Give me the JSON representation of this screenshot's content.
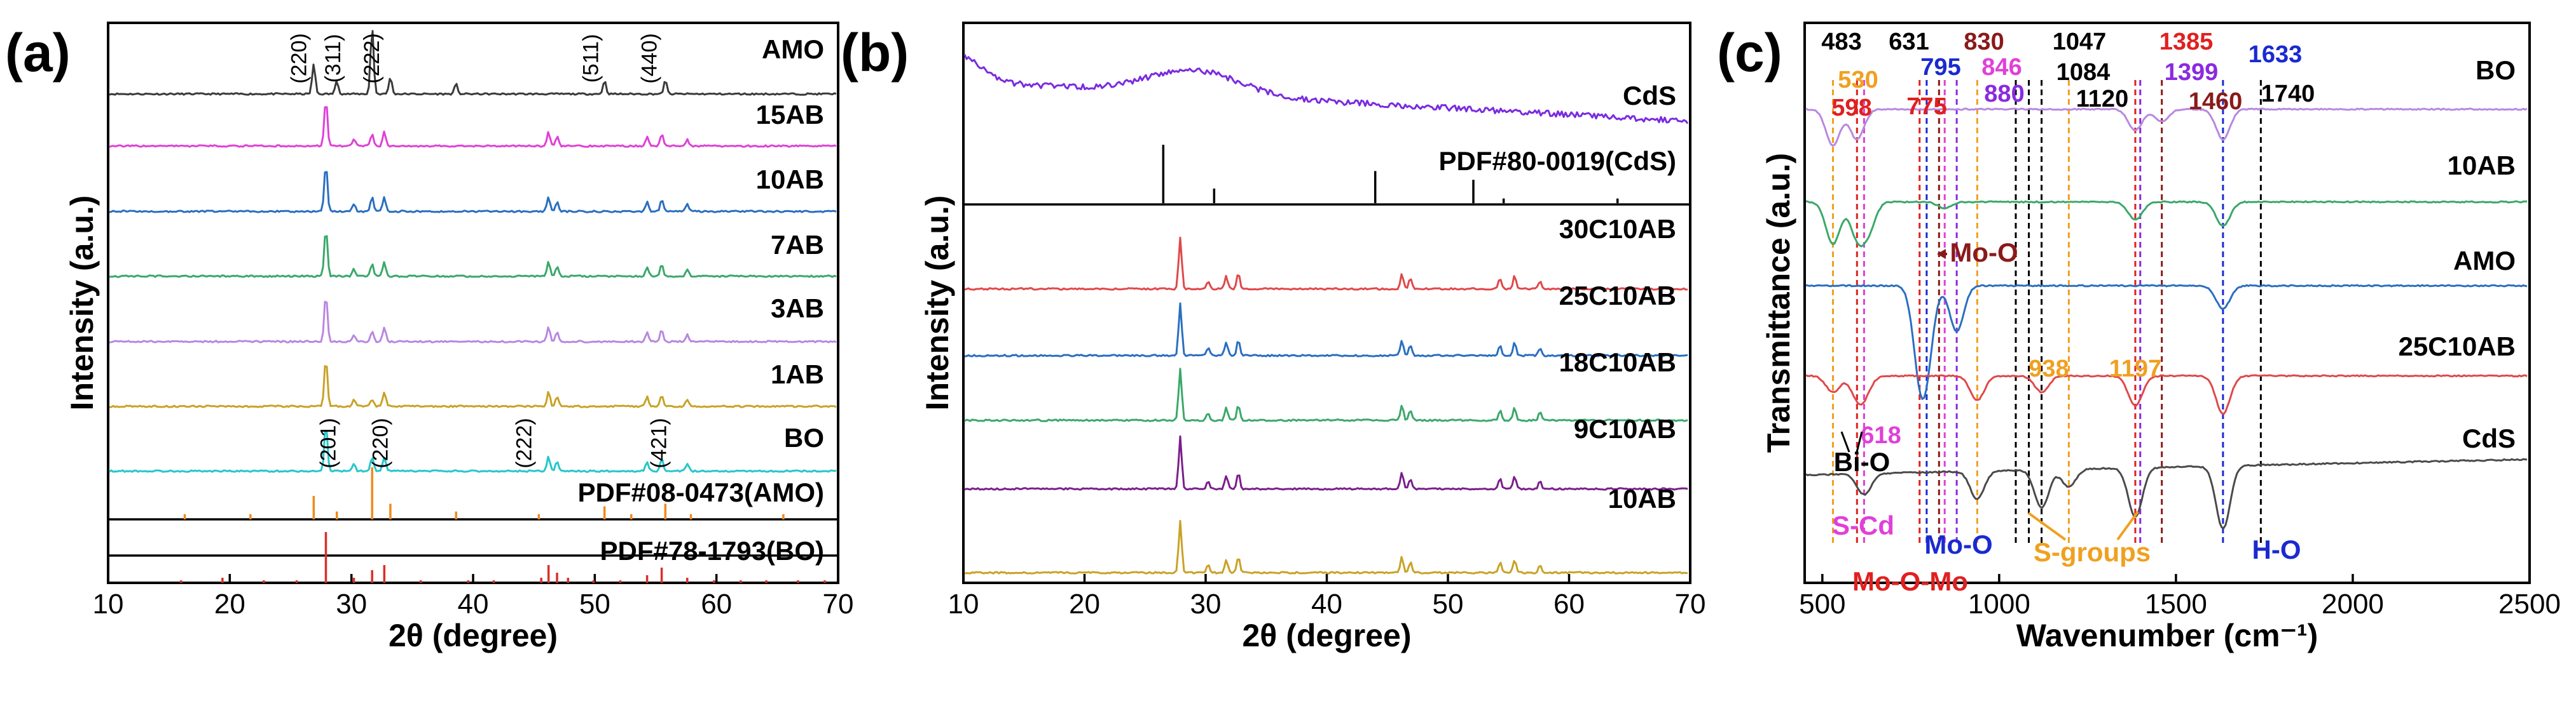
{
  "chart_data": [
    {
      "panel": "(a)",
      "type": "line",
      "xlabel": "2θ (degree)",
      "ylabel": "Intensity (a.u.)",
      "xlim": [
        10,
        70
      ],
      "xticks": [
        10,
        20,
        30,
        40,
        50,
        60,
        70
      ],
      "series": [
        {
          "name": "AMO",
          "color": "#3a3a3a",
          "peaks": [
            [
              26.9,
              0.45
            ],
            [
              28.8,
              0.2
            ],
            [
              31.7,
              1.0
            ],
            [
              33.2,
              0.25
            ],
            [
              38.6,
              0.15
            ],
            [
              50.8,
              0.2
            ],
            [
              55.8,
              0.2
            ]
          ]
        },
        {
          "name": "15AB",
          "color": "#e040d8",
          "peaks": [
            [
              27.9,
              1.0
            ],
            [
              30.2,
              0.15
            ],
            [
              31.7,
              0.25
            ],
            [
              32.7,
              0.3
            ],
            [
              46.2,
              0.3
            ],
            [
              46.9,
              0.2
            ],
            [
              54.3,
              0.2
            ],
            [
              55.5,
              0.25
            ],
            [
              57.6,
              0.15
            ]
          ]
        },
        {
          "name": "10AB",
          "color": "#2a6fc0",
          "peaks": [
            [
              27.9,
              1.0
            ],
            [
              30.2,
              0.15
            ],
            [
              31.7,
              0.3
            ],
            [
              32.7,
              0.3
            ],
            [
              46.2,
              0.3
            ],
            [
              46.9,
              0.2
            ],
            [
              54.3,
              0.2
            ],
            [
              55.5,
              0.25
            ],
            [
              57.6,
              0.15
            ]
          ]
        },
        {
          "name": "7AB",
          "color": "#3aa86a",
          "peaks": [
            [
              27.9,
              1.0
            ],
            [
              30.2,
              0.15
            ],
            [
              31.7,
              0.25
            ],
            [
              32.7,
              0.3
            ],
            [
              46.2,
              0.3
            ],
            [
              46.9,
              0.2
            ],
            [
              54.3,
              0.2
            ],
            [
              55.5,
              0.25
            ],
            [
              57.6,
              0.15
            ]
          ]
        },
        {
          "name": "3AB",
          "color": "#b888e0",
          "peaks": [
            [
              27.9,
              1.0
            ],
            [
              30.2,
              0.15
            ],
            [
              31.7,
              0.2
            ],
            [
              32.7,
              0.3
            ],
            [
              46.2,
              0.3
            ],
            [
              46.9,
              0.2
            ],
            [
              54.3,
              0.2
            ],
            [
              55.5,
              0.25
            ],
            [
              57.6,
              0.15
            ]
          ]
        },
        {
          "name": "1AB",
          "color": "#c9a227",
          "peaks": [
            [
              27.9,
              1.0
            ],
            [
              30.2,
              0.15
            ],
            [
              31.7,
              0.15
            ],
            [
              32.7,
              0.3
            ],
            [
              46.2,
              0.3
            ],
            [
              46.9,
              0.2
            ],
            [
              54.3,
              0.2
            ],
            [
              55.5,
              0.25
            ],
            [
              57.6,
              0.15
            ]
          ]
        },
        {
          "name": "BO",
          "color": "#26c6cc",
          "peaks": [
            [
              27.9,
              1.0
            ],
            [
              30.2,
              0.15
            ],
            [
              31.7,
              0.3
            ],
            [
              32.7,
              0.3
            ],
            [
              46.2,
              0.3
            ],
            [
              46.9,
              0.2
            ],
            [
              54.3,
              0.2
            ],
            [
              55.5,
              0.25
            ],
            [
              57.6,
              0.15
            ]
          ]
        }
      ],
      "references": [
        {
          "name": "PDF#08-0473(AMO)",
          "color": "#f08a1c",
          "lines": [
            [
              16.3,
              0.1
            ],
            [
              21.7,
              0.1
            ],
            [
              26.9,
              0.45
            ],
            [
              28.8,
              0.15
            ],
            [
              31.7,
              1.0
            ],
            [
              33.2,
              0.3
            ],
            [
              38.6,
              0.15
            ],
            [
              45.4,
              0.1
            ],
            [
              50.8,
              0.25
            ],
            [
              53.0,
              0.1
            ],
            [
              55.8,
              0.3
            ],
            [
              57.9,
              0.1
            ],
            [
              65.5,
              0.1
            ]
          ]
        },
        {
          "name": "PDF#78-1793(BO)",
          "color": "#d9302a",
          "lines": [
            [
              16.0,
              0.05
            ],
            [
              19.4,
              0.1
            ],
            [
              22.8,
              0.05
            ],
            [
              25.5,
              0.05
            ],
            [
              27.9,
              1.0
            ],
            [
              30.2,
              0.1
            ],
            [
              31.7,
              0.25
            ],
            [
              32.7,
              0.35
            ],
            [
              35.7,
              0.05
            ],
            [
              39.6,
              0.05
            ],
            [
              41.7,
              0.05
            ],
            [
              45.6,
              0.1
            ],
            [
              46.2,
              0.35
            ],
            [
              46.9,
              0.2
            ],
            [
              47.8,
              0.1
            ],
            [
              49.9,
              0.05
            ],
            [
              52.1,
              0.05
            ],
            [
              54.3,
              0.15
            ],
            [
              55.5,
              0.3
            ],
            [
              57.6,
              0.1
            ],
            [
              59.8,
              0.05
            ],
            [
              62.0,
              0.05
            ],
            [
              64.1,
              0.05
            ],
            [
              66.7,
              0.05
            ],
            [
              68.9,
              0.05
            ]
          ]
        }
      ],
      "annotations": {
        "amo_hkl": [
          {
            "x": 27.0,
            "label": "(220)"
          },
          {
            "x": 29.8,
            "label": "(311)"
          },
          {
            "x": 33.0,
            "label": "(222)"
          },
          {
            "x": 51.0,
            "label": "(511)"
          },
          {
            "x": 55.8,
            "label": "(440)"
          }
        ],
        "bo_hkl": [
          {
            "x": 29.3,
            "label": "(201)"
          },
          {
            "x": 33.6,
            "label": "(220)"
          },
          {
            "x": 45.4,
            "label": "(222)"
          },
          {
            "x": 56.5,
            "label": "(421)"
          }
        ]
      }
    },
    {
      "panel": "(b)",
      "type": "line",
      "xlabel": "2θ (degree)",
      "ylabel": "Intensity (a.u.)",
      "xlim": [
        10,
        70
      ],
      "xticks": [
        10,
        20,
        30,
        40,
        50,
        60,
        70
      ],
      "amorphous": {
        "name": "CdS",
        "color": "#7a2be0",
        "description": "broad hump centered near 29°"
      },
      "references": [
        {
          "name": "PDF#80-0019(CdS)",
          "color": "#000000",
          "lines": [
            [
              26.5,
              1.0
            ],
            [
              30.7,
              0.25
            ],
            [
              44.0,
              0.55
            ],
            [
              52.1,
              0.4
            ],
            [
              54.6,
              0.08
            ],
            [
              64.0,
              0.08
            ]
          ]
        }
      ],
      "series": [
        {
          "name": "30C10AB",
          "color": "#e0484a"
        },
        {
          "name": "25C10AB",
          "color": "#2a6fc0"
        },
        {
          "name": "18C10AB",
          "color": "#3aa86a"
        },
        {
          "name": "9C10AB",
          "color": "#7a1f8a"
        },
        {
          "name": "10AB",
          "color": "#c9a227"
        }
      ]
    },
    {
      "panel": "(c)",
      "type": "line",
      "xlabel": "Wavenumber (cm⁻¹)",
      "ylabel": "Transmittance (a.u.)",
      "xlim": [
        450,
        2500
      ],
      "xticks": [
        500,
        1000,
        1500,
        2000,
        2500
      ],
      "series": [
        {
          "name": "BO",
          "color": "#b888e0",
          "bands": [
            [
              530,
              0.6
            ],
            [
              598,
              0.5
            ],
            [
              1385,
              0.35
            ],
            [
              1460,
              0.2
            ],
            [
              1633,
              0.5
            ]
          ]
        },
        {
          "name": "10AB",
          "color": "#3aa86a",
          "bands": [
            [
              530,
              0.7
            ],
            [
              598,
              0.55
            ],
            [
              630,
              0.45
            ],
            [
              846,
              0.1
            ],
            [
              1385,
              0.3
            ],
            [
              1633,
              0.4
            ]
          ]
        },
        {
          "name": "AMO",
          "color": "#2a6fc0",
          "bands": [
            [
              775,
              0.9
            ],
            [
              795,
              0.8
            ],
            [
              880,
              0.6
            ],
            [
              1633,
              0.3
            ]
          ]
        },
        {
          "name": "25C10AB",
          "color": "#e0484a",
          "bands": [
            [
              530,
              0.3
            ],
            [
              598,
              0.3
            ],
            [
              618,
              0.3
            ],
            [
              938,
              0.45
            ],
            [
              1120,
              0.3
            ],
            [
              1385,
              0.55
            ],
            [
              1633,
              0.7
            ]
          ]
        },
        {
          "name": "CdS",
          "color": "#4a4a4a",
          "bands": [
            [
              618,
              0.3
            ],
            [
              938,
              0.4
            ],
            [
              1120,
              0.55
            ],
            [
              1197,
              0.25
            ],
            [
              1385,
              0.7
            ],
            [
              1633,
              0.9
            ]
          ]
        }
      ],
      "peak_labels": [
        {
          "text": "483",
          "color": "#000000",
          "row": 1
        },
        {
          "text": "631",
          "color": "#000000",
          "row": 1
        },
        {
          "text": "830",
          "color": "#8a1a1a",
          "row": 1
        },
        {
          "text": "1047",
          "color": "#000000",
          "row": 1
        },
        {
          "text": "1385",
          "color": "#e02020",
          "row": 1
        },
        {
          "text": "1633",
          "color": "#1a2ad0",
          "row": 1
        },
        {
          "text": "530",
          "color": "#f0a020",
          "row": 2
        },
        {
          "text": "795",
          "color": "#1a2ad0",
          "row": 2
        },
        {
          "text": "846",
          "color": "#e040d8",
          "row": 2
        },
        {
          "text": "1084",
          "color": "#000000",
          "row": 2
        },
        {
          "text": "1399",
          "color": "#8a2ae0",
          "row": 2
        },
        {
          "text": "598",
          "color": "#e02020",
          "row": 3
        },
        {
          "text": "775",
          "color": "#e02020",
          "row": 3
        },
        {
          "text": "880",
          "color": "#8a2ae0",
          "row": 3
        },
        {
          "text": "1120",
          "color": "#000000",
          "row": 3
        },
        {
          "text": "1460",
          "color": "#8a1a1a",
          "row": 3
        },
        {
          "text": "1740",
          "color": "#000000",
          "row": 3
        },
        {
          "text": "938",
          "color": "#f0a020",
          "row": 4
        },
        {
          "text": "1197",
          "color": "#f0a020",
          "row": 4
        },
        {
          "text": "618",
          "color": "#e040d8",
          "row": 5
        }
      ],
      "group_labels": [
        {
          "text": "Mo-O",
          "color": "#8a1a1a"
        },
        {
          "text": "Bi-O",
          "color": "#000000"
        },
        {
          "text": "S-Cd",
          "color": "#e040d8"
        },
        {
          "text": "Mo-O",
          "color": "#1a2ad0"
        },
        {
          "text": "S-groups",
          "color": "#f0a020"
        },
        {
          "text": "H-O",
          "color": "#1a2ad0"
        },
        {
          "text": "Mo-O-Mo",
          "color": "#e02020"
        }
      ]
    }
  ]
}
